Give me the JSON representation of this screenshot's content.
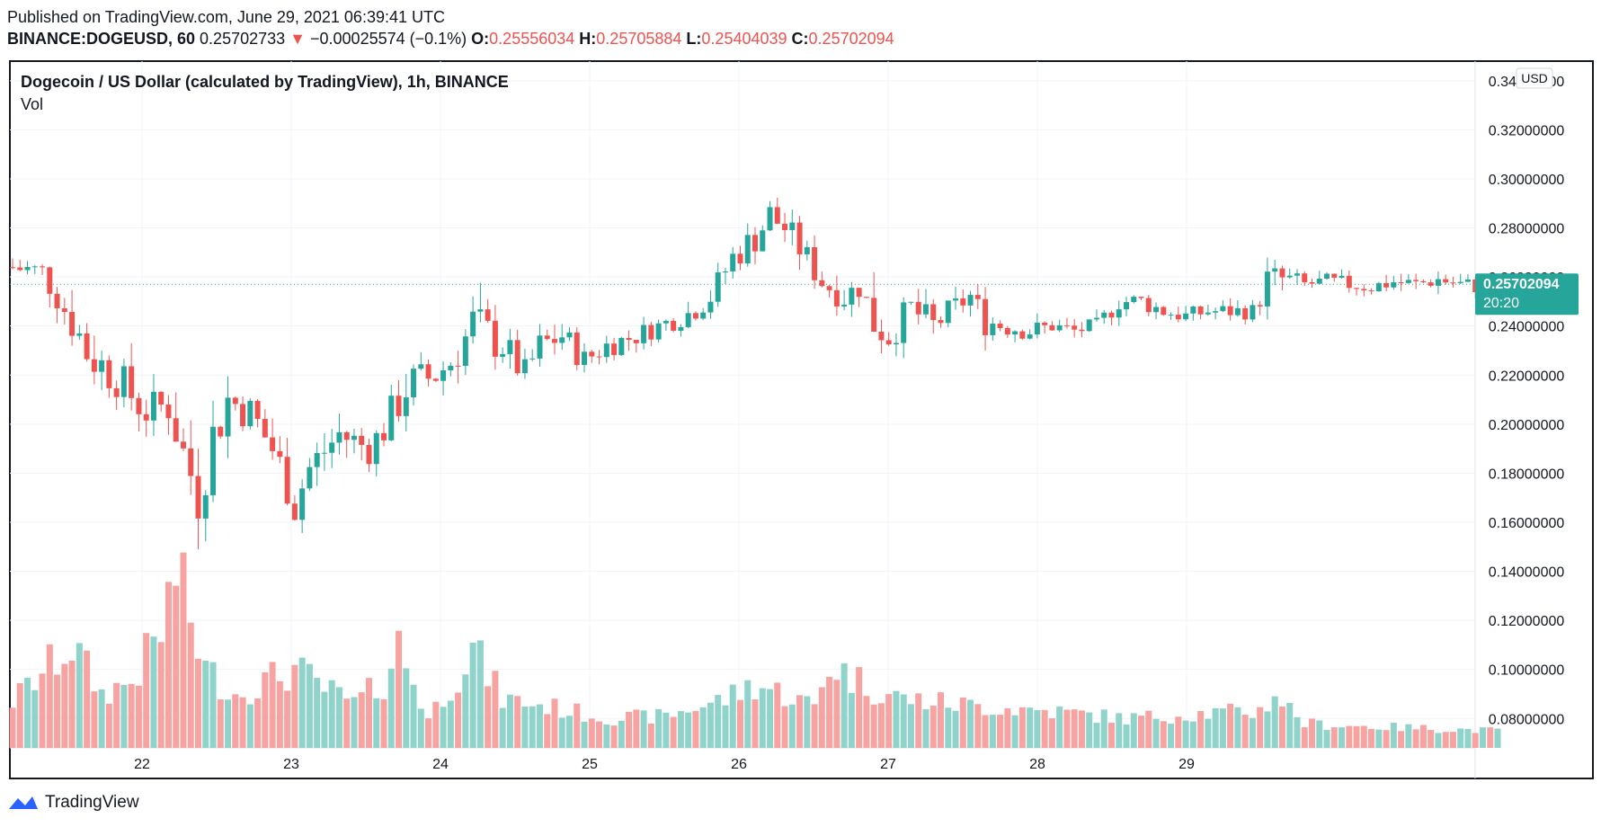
{
  "header": {
    "published": "Published on TradingView.com, June 29, 2021 06:39:41 UTC",
    "symbol": "BINANCE:DOGEUSD, 60",
    "last": "0.25702733",
    "change": "−0.00025574 (−0.1%)",
    "o_label": "O:",
    "o_value": "0.25556034",
    "h_label": "H:",
    "h_value": "0.25705884",
    "l_label": "L:",
    "l_value": "0.25404039",
    "c_label": "C:",
    "c_value": "0.25702094"
  },
  "legend": {
    "title": "Dogecoin / US Dollar (calculated by TradingView), 1h, BINANCE",
    "vol": "Vol"
  },
  "currency": "USD",
  "price_tag": {
    "value": "0.25702094",
    "countdown": "20:20"
  },
  "footer": {
    "brand": "TradingView"
  },
  "colors": {
    "up": "#26a69a",
    "down": "#ef5350",
    "up_vol": "#8fd3cb",
    "down_vol": "#f6a3a1",
    "grid": "#f0f3fa",
    "tag": "#26a69a"
  },
  "chart_data": {
    "type": "candlestick",
    "y_ticks": [
      "0.34000000",
      "0.32000000",
      "0.30000000",
      "0.28000000",
      "0.26000000",
      "0.24000000",
      "0.22000000",
      "0.20000000",
      "0.18000000",
      "0.16000000",
      "0.14000000",
      "0.12000000",
      "0.10000000",
      "0.08000000"
    ],
    "ylim": [
      0.068,
      0.348
    ],
    "x_ticks": [
      "22",
      "23",
      "24",
      "25",
      "26",
      "27",
      "28",
      "29"
    ],
    "last_price": 0.25702094,
    "anchors": [
      [
        0,
        0.264,
        0.018
      ],
      [
        4,
        0.262,
        0.016
      ],
      [
        6,
        0.252,
        0.018
      ],
      [
        8,
        0.242,
        0.026
      ],
      [
        10,
        0.23,
        0.034
      ],
      [
        14,
        0.218,
        0.022
      ],
      [
        16,
        0.212,
        0.032
      ],
      [
        18,
        0.205,
        0.022
      ],
      [
        21,
        0.208,
        0.028
      ],
      [
        23,
        0.188,
        0.035
      ],
      [
        25,
        0.172,
        0.04
      ],
      [
        27,
        0.195,
        0.035
      ],
      [
        29,
        0.21,
        0.03
      ],
      [
        32,
        0.205,
        0.022
      ],
      [
        35,
        0.19,
        0.03
      ],
      [
        37,
        0.175,
        0.025
      ],
      [
        38,
        0.168,
        0.032
      ],
      [
        40,
        0.182,
        0.025
      ],
      [
        44,
        0.196,
        0.022
      ],
      [
        48,
        0.19,
        0.02
      ],
      [
        50,
        0.198,
        0.022
      ],
      [
        53,
        0.215,
        0.03
      ],
      [
        57,
        0.22,
        0.02
      ],
      [
        59,
        0.225,
        0.018
      ],
      [
        62,
        0.24,
        0.036
      ],
      [
        66,
        0.232,
        0.022
      ],
      [
        69,
        0.22,
        0.02
      ],
      [
        71,
        0.232,
        0.018
      ],
      [
        74,
        0.236,
        0.018
      ],
      [
        77,
        0.226,
        0.016
      ],
      [
        80,
        0.232,
        0.014
      ],
      [
        84,
        0.236,
        0.013
      ],
      [
        87,
        0.24,
        0.012
      ],
      [
        91,
        0.245,
        0.014
      ],
      [
        94,
        0.252,
        0.016
      ],
      [
        97,
        0.268,
        0.018
      ],
      [
        100,
        0.276,
        0.02
      ],
      [
        102,
        0.285,
        0.022
      ],
      [
        104,
        0.28,
        0.018
      ],
      [
        106,
        0.272,
        0.02
      ],
      [
        109,
        0.258,
        0.016
      ],
      [
        112,
        0.252,
        0.018
      ],
      [
        114,
        0.256,
        0.016
      ],
      [
        116,
        0.242,
        0.03
      ],
      [
        118,
        0.236,
        0.02
      ],
      [
        121,
        0.247,
        0.02
      ],
      [
        124,
        0.24,
        0.02
      ],
      [
        127,
        0.248,
        0.014
      ],
      [
        129,
        0.252,
        0.016
      ],
      [
        131,
        0.242,
        0.018
      ],
      [
        134,
        0.24,
        0.014
      ],
      [
        137,
        0.238,
        0.012
      ],
      [
        140,
        0.24,
        0.01
      ],
      [
        143,
        0.238,
        0.01
      ],
      [
        146,
        0.24,
        0.01
      ],
      [
        149,
        0.25,
        0.012
      ],
      [
        152,
        0.25,
        0.012
      ],
      [
        155,
        0.246,
        0.01
      ],
      [
        158,
        0.244,
        0.01
      ],
      [
        161,
        0.246,
        0.01
      ],
      [
        164,
        0.246,
        0.01
      ],
      [
        167,
        0.246,
        0.01
      ],
      [
        169,
        0.258,
        0.022
      ],
      [
        171,
        0.259,
        0.018
      ],
      [
        174,
        0.257,
        0.01
      ],
      [
        177,
        0.258,
        0.01
      ],
      [
        180,
        0.257,
        0.01
      ],
      [
        183,
        0.256,
        0.01
      ],
      [
        186,
        0.258,
        0.01
      ],
      [
        189,
        0.257,
        0.01
      ],
      [
        192,
        0.259,
        0.01
      ],
      [
        195,
        0.257,
        0.01
      ],
      [
        198,
        0.256,
        0.01
      ],
      [
        200,
        0.257,
        0.01
      ]
    ],
    "vol_anchors": [
      [
        0,
        0.087
      ],
      [
        8,
        0.11
      ],
      [
        12,
        0.09
      ],
      [
        16,
        0.095
      ],
      [
        20,
        0.115
      ],
      [
        22,
        0.14
      ],
      [
        26,
        0.1
      ],
      [
        30,
        0.09
      ],
      [
        34,
        0.095
      ],
      [
        38,
        0.1
      ],
      [
        42,
        0.092
      ],
      [
        46,
        0.086
      ],
      [
        50,
        0.095
      ],
      [
        52,
        0.11
      ],
      [
        56,
        0.08
      ],
      [
        62,
        0.108
      ],
      [
        66,
        0.088
      ],
      [
        72,
        0.085
      ],
      [
        80,
        0.08
      ],
      [
        88,
        0.081
      ],
      [
        96,
        0.088
      ],
      [
        100,
        0.094
      ],
      [
        104,
        0.09
      ],
      [
        108,
        0.085
      ],
      [
        110,
        0.102
      ],
      [
        116,
        0.092
      ],
      [
        120,
        0.088
      ],
      [
        130,
        0.085
      ],
      [
        140,
        0.083
      ],
      [
        150,
        0.08
      ],
      [
        160,
        0.082
      ],
      [
        168,
        0.083
      ],
      [
        170,
        0.09
      ],
      [
        174,
        0.078
      ],
      [
        180,
        0.077
      ],
      [
        190,
        0.076
      ],
      [
        200,
        0.075
      ]
    ]
  }
}
